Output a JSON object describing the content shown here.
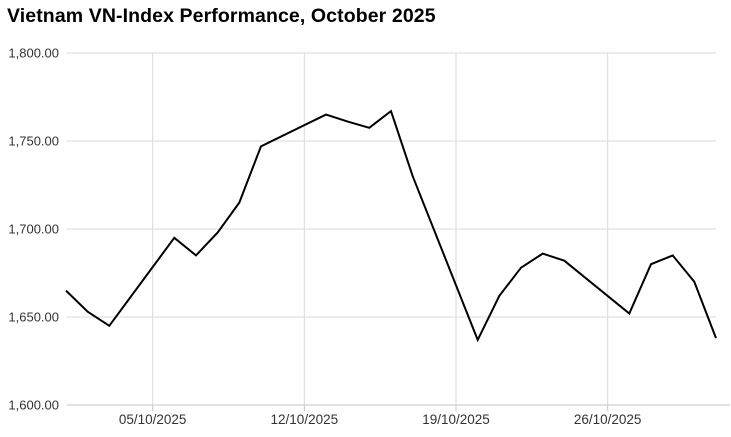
{
  "title": "Vietnam VN-Index Performance, October 2025",
  "chart_data": {
    "type": "line",
    "title": "Vietnam VN-Index Performance, October 2025",
    "series_name": "VN-Index",
    "x": [
      "01/10/2025",
      "02/10/2025",
      "03/10/2025",
      "06/10/2025",
      "07/10/2025",
      "08/10/2025",
      "09/10/2025",
      "10/10/2025",
      "13/10/2025",
      "14/10/2025",
      "15/10/2025",
      "16/10/2025",
      "17/10/2025",
      "20/10/2025",
      "21/10/2025",
      "22/10/2025",
      "23/10/2025",
      "24/10/2025",
      "27/10/2025",
      "28/10/2025",
      "29/10/2025",
      "30/10/2025",
      "31/10/2025"
    ],
    "values": [
      1665,
      1653,
      1645,
      1695,
      1685,
      1698,
      1715,
      1747,
      1765,
      1761,
      1757.5,
      1767,
      1730,
      1637,
      1662,
      1678,
      1686,
      1682,
      1652,
      1680,
      1685,
      1670,
      1638
    ],
    "ylim": [
      1600,
      1800
    ],
    "ytick_labels": [
      "1,800.00",
      "1,750.00",
      "1,700.00",
      "1,650.00",
      "1,600.00"
    ],
    "xtick_labels": [
      "05/10/2025",
      "12/10/2025",
      "19/10/2025",
      "26/10/2025"
    ],
    "grid": true,
    "legend": "none",
    "colors": {
      "line": "#000000",
      "grid": "#dadada",
      "axis": "#c6c6c6",
      "tick_label": "#333333",
      "title": "#000000"
    }
  }
}
